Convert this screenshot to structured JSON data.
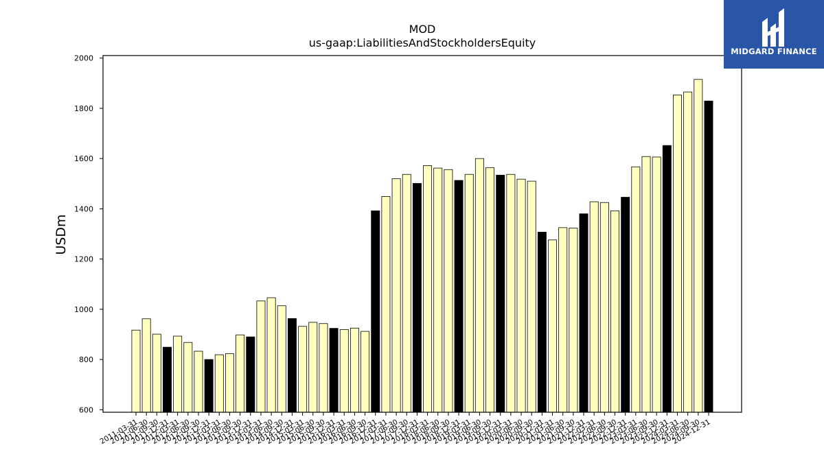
{
  "chart_data": {
    "type": "bar",
    "title": "MOD",
    "subtitle": "us-gaap:LiabilitiesAndStockholdersEquity",
    "ylabel": "USDm",
    "xlabel": "",
    "ylim": [
      590,
      2010
    ],
    "yticks": [
      600,
      800,
      1000,
      1200,
      1400,
      1600,
      1800,
      2000
    ],
    "grid": false,
    "legend": "none",
    "colors": {
      "quarter": "#ffffc0",
      "fiscal_year_end": "#000000",
      "edge": "#000000"
    },
    "categories": [
      "2011-03-31",
      "2011-06-30",
      "2011-09-30",
      "2011-12-31",
      "2012-03-31",
      "2012-06-30",
      "2012-09-30",
      "2012-12-31",
      "2013-03-31",
      "2013-06-30",
      "2013-09-30",
      "2013-12-31",
      "2014-03-31",
      "2014-06-30",
      "2014-09-30",
      "2014-12-31",
      "2015-03-31",
      "2015-06-30",
      "2015-09-30",
      "2015-12-31",
      "2016-03-31",
      "2016-06-30",
      "2016-09-30",
      "2016-12-31",
      "2017-03-31",
      "2017-06-30",
      "2017-09-30",
      "2017-12-31",
      "2018-03-31",
      "2018-06-30",
      "2018-09-30",
      "2018-12-31",
      "2019-03-31",
      "2019-06-30",
      "2019-09-30",
      "2019-12-31",
      "2020-03-31",
      "2020-06-30",
      "2020-09-30",
      "2020-12-31",
      "2021-03-31",
      "2021-06-30",
      "2021-09-30",
      "2021-12-31",
      "2022-03-31",
      "2022-06-30",
      "2022-09-30",
      "2022-12-31",
      "2023-03-31",
      "2023-06-30",
      "2023-09-30",
      "2023-12-31",
      "2024-03-31",
      "2024-06-30",
      "2024-09-30",
      "2024-12-31"
    ],
    "values": [
      917,
      962,
      901,
      849,
      893,
      868,
      833,
      800,
      819,
      823,
      898,
      890,
      1033,
      1046,
      1014,
      963,
      932,
      948,
      943,
      924,
      919,
      925,
      912,
      1392,
      1449,
      1520,
      1537,
      1501,
      1572,
      1562,
      1556,
      1513,
      1537,
      1600,
      1564,
      1534,
      1537,
      1518,
      1510,
      1307,
      1276,
      1325,
      1323,
      1380,
      1428,
      1425,
      1392,
      1446,
      1567,
      1608,
      1606,
      1652,
      1853,
      1865,
      1915,
      1829
    ],
    "fiscal_year_end": [
      false,
      false,
      false,
      true,
      false,
      false,
      false,
      true,
      false,
      false,
      false,
      true,
      false,
      false,
      false,
      true,
      false,
      false,
      false,
      true,
      false,
      false,
      false,
      true,
      false,
      false,
      false,
      true,
      false,
      false,
      false,
      true,
      false,
      false,
      false,
      true,
      false,
      false,
      false,
      true,
      false,
      false,
      false,
      true,
      false,
      false,
      false,
      true,
      false,
      false,
      false,
      true,
      false,
      false,
      false,
      true
    ]
  },
  "logo": {
    "text": "MIDGARD FINANCE"
  }
}
